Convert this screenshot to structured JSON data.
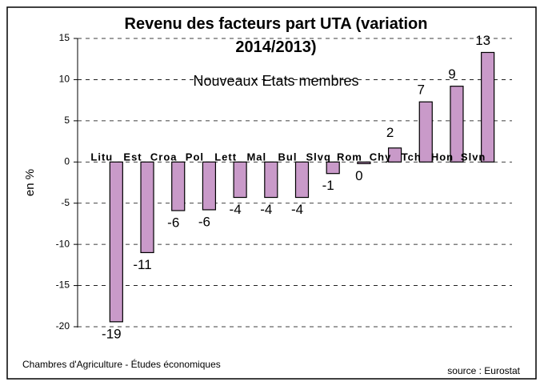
{
  "chart_data": {
    "type": "bar",
    "title": "Revenu  des facteurs part UTA (variation 2014/2013)",
    "subtitle": "Nouveaux Etats membres",
    "y_label": "en %",
    "footer_left": "Chambres d'Agriculture - Études économiques",
    "footer_right": "source : Eurostat",
    "categories": [
      "Litu",
      "Est",
      "Croa",
      "Pol",
      "Lett",
      "Mal",
      "Bul",
      "Slvq",
      "Rom",
      "Chy",
      "Tch",
      "Hon",
      "Slvn"
    ],
    "values": [
      -19.4,
      -11,
      -5.9,
      -5.8,
      -4.3,
      -4.3,
      -4.3,
      -1.4,
      -0.2,
      1.7,
      7.3,
      9.2,
      13.3
    ],
    "value_labels": [
      "-19",
      "-11",
      "-6",
      "-6",
      "-4",
      "-4",
      "-4",
      "-1",
      "0",
      "2",
      "7",
      "9",
      "13"
    ],
    "color": "#c99ac9",
    "ylim": [
      -20,
      15
    ],
    "yticks": [
      15,
      10,
      5,
      0,
      -5,
      -10,
      -15,
      -20
    ],
    "grid": true
  }
}
